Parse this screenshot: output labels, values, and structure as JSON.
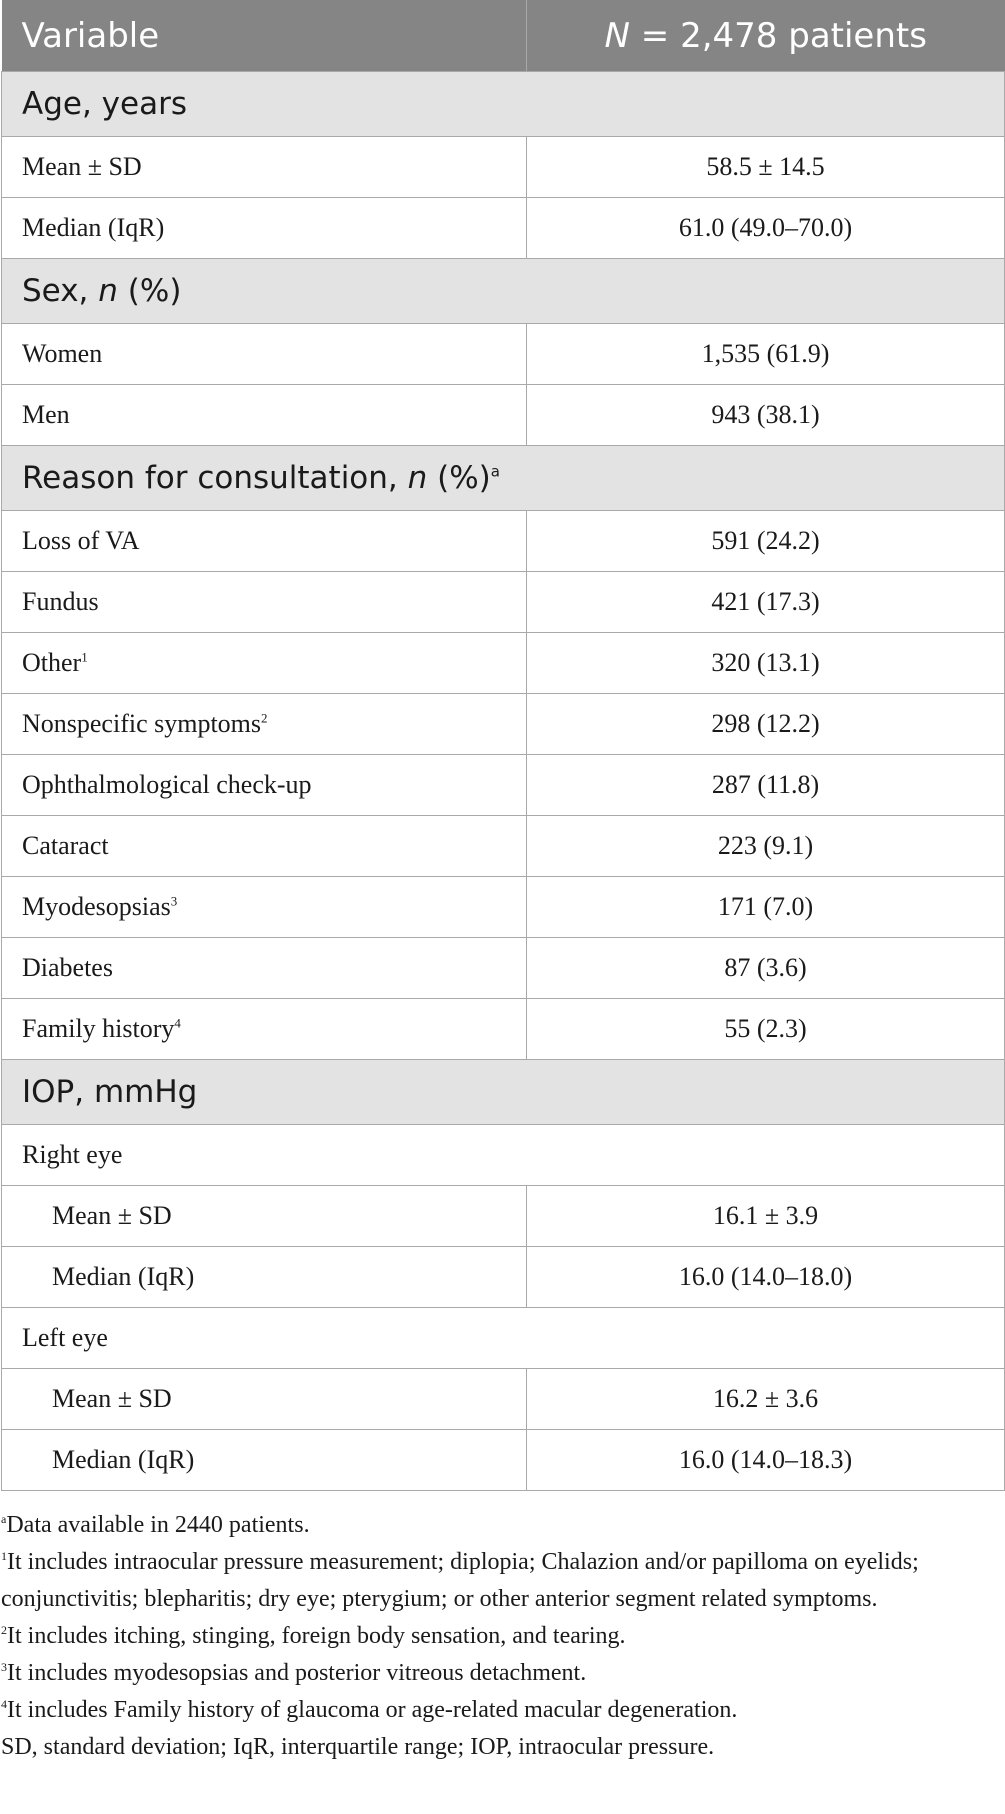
{
  "header": {
    "col1": "Variable",
    "col2_n": "N",
    "col2_rest": " = 2,478 patients"
  },
  "sections": {
    "age": {
      "title": "Age, years",
      "rows": [
        {
          "label": "Mean ± SD",
          "value": "58.5 ± 14.5"
        },
        {
          "label": "Median (IqR)",
          "value": "61.0 (49.0–70.0)"
        }
      ]
    },
    "sex": {
      "title_pre": "Sex, ",
      "title_n": "n",
      "title_post": " (%)",
      "rows": [
        {
          "label": "Women",
          "value": "1,535 (61.9)"
        },
        {
          "label": "Men",
          "value": "943 (38.1)"
        }
      ]
    },
    "reason": {
      "title_pre": "Reason for consultation, ",
      "title_n": "n",
      "title_post": " (%)",
      "title_sup": "a",
      "rows": [
        {
          "label": "Loss of VA",
          "sup": "",
          "value": "591 (24.2)"
        },
        {
          "label": "Fundus",
          "sup": "",
          "value": "421 (17.3)"
        },
        {
          "label": "Other",
          "sup": "1",
          "value": "320 (13.1)"
        },
        {
          "label": "Nonspecific symptoms",
          "sup": "2",
          "value": "298 (12.2)"
        },
        {
          "label": "Ophthalmological check-up",
          "sup": "",
          "value": "287 (11.8)"
        },
        {
          "label": "Cataract",
          "sup": "",
          "value": "223 (9.1)"
        },
        {
          "label": "Myodesopsias",
          "sup": "3",
          "value": "171 (7.0)"
        },
        {
          "label": "Diabetes",
          "sup": "",
          "value": "87 (3.6)"
        },
        {
          "label": "Family history",
          "sup": "4",
          "value": "55 (2.3)"
        }
      ]
    },
    "iop": {
      "title": "IOP, mmHg",
      "right_eye": {
        "label": "Right eye",
        "rows": [
          {
            "label": "Mean ± SD",
            "value": "16.1 ± 3.9"
          },
          {
            "label": "Median (IqR)",
            "value": "16.0 (14.0–18.0)"
          }
        ]
      },
      "left_eye": {
        "label": "Left eye",
        "rows": [
          {
            "label": "Mean ± SD",
            "value": "16.2 ± 3.6"
          },
          {
            "label": "Median (IqR)",
            "value": "16.0 (14.0–18.3)"
          }
        ]
      }
    }
  },
  "footnotes": [
    {
      "mark": "a",
      "text": "Data available in 2440 patients."
    },
    {
      "mark": "1",
      "text": "It includes intraocular pressure measurement; diplopia; Chalazion and/or papilloma on eyelids; conjunctivitis; blepharitis; dry eye; pterygium; or other anterior segment related symptoms."
    },
    {
      "mark": "2",
      "text": "It includes itching, stinging, foreign body sensation, and tearing."
    },
    {
      "mark": "3",
      "text": "It includes myodesopsias and posterior vitreous detachment."
    },
    {
      "mark": "4",
      "text": "It includes Family history of glaucoma or age-related macular degeneration."
    },
    {
      "mark": "",
      "text": "SD, standard deviation; IqR, interquartile range; IOP, intraocular pressure."
    }
  ]
}
